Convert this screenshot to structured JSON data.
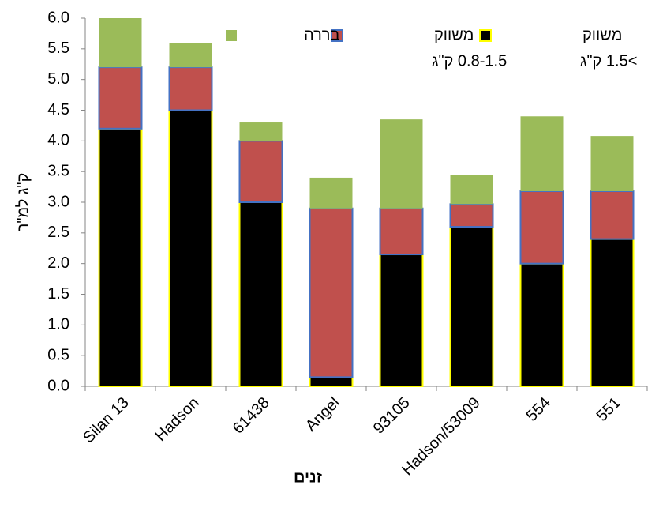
{
  "chart_data": {
    "type": "stacked-bar",
    "y_label": "ק\"ג למ\"ר",
    "x_label": "זנים",
    "categories": [
      "Silan 13",
      "Hadson",
      "61438",
      "Angel",
      "93105",
      "Hadson/53009",
      "554",
      "551"
    ],
    "series": [
      {
        "name": "משווק",
        "detail": ">1.5 ק\"ג",
        "color": "#000000",
        "border": "#ffff00",
        "values": [
          4.2,
          4.5,
          3.0,
          0.15,
          2.15,
          2.6,
          2.0,
          2.4
        ]
      },
      {
        "name": "משווק",
        "detail": "0.8-1.5 ק\"ג",
        "color": "#c0504d",
        "border": "#4472c4",
        "values": [
          1.0,
          0.7,
          1.0,
          2.75,
          0.75,
          0.37,
          1.18,
          0.78
        ]
      },
      {
        "name": "בררה",
        "color": "#9bbb59",
        "values": [
          0.8,
          0.4,
          0.3,
          0.5,
          1.45,
          0.48,
          1.22,
          0.9
        ]
      }
    ],
    "ylim": [
      0,
      6
    ],
    "yticks": [
      {
        "value": 0,
        "label": "0.0"
      },
      0.5,
      {
        "value": 1,
        "label": "1.0"
      },
      1.5,
      {
        "value": 2,
        "label": "2.0"
      },
      2.5,
      {
        "value": 3,
        "label": "3.0"
      },
      3.5,
      {
        "value": 4,
        "label": "4.0"
      },
      4.5,
      {
        "value": 5,
        "label": "5.0"
      },
      5.5,
      {
        "value": 6,
        "label": "6.0"
      }
    ]
  }
}
